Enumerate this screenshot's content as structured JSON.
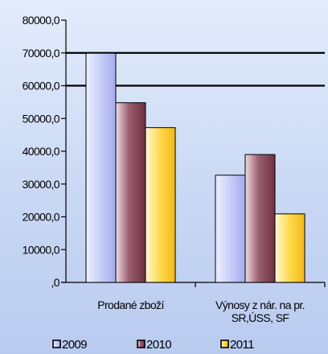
{
  "chart_data": {
    "type": "bar",
    "title": "",
    "xlabel": "",
    "ylabel": "",
    "categories": [
      [
        "Prodané zboží"
      ],
      [
        "Výnosy z nár. na pr.",
        "SR,ÚSS, SF"
      ]
    ],
    "series": [
      {
        "name": "2009",
        "values": [
          69900,
          32700
        ],
        "color": "#c8cef8"
      },
      {
        "name": "2010",
        "values": [
          54800,
          39000
        ],
        "color": "#9a5e6e"
      },
      {
        "name": "2011",
        "values": [
          47200,
          20900
        ],
        "color": "#ffd94a"
      }
    ],
    "ylim": [
      0,
      80000
    ],
    "yticks": [
      {
        "value": 0,
        "label": ",0"
      },
      {
        "value": 10000,
        "label": "10000,0"
      },
      {
        "value": 20000,
        "label": "20000,0"
      },
      {
        "value": 30000,
        "label": "30000,0"
      },
      {
        "value": 40000,
        "label": "40000,0"
      },
      {
        "value": 50000,
        "label": "50000,0"
      },
      {
        "value": 60000,
        "label": "60000,0"
      },
      {
        "value": 70000,
        "label": "70000,0"
      },
      {
        "value": 80000,
        "label": "80000,0"
      }
    ],
    "gridlines": [
      60000,
      70000
    ],
    "legend_position": "bottom"
  }
}
